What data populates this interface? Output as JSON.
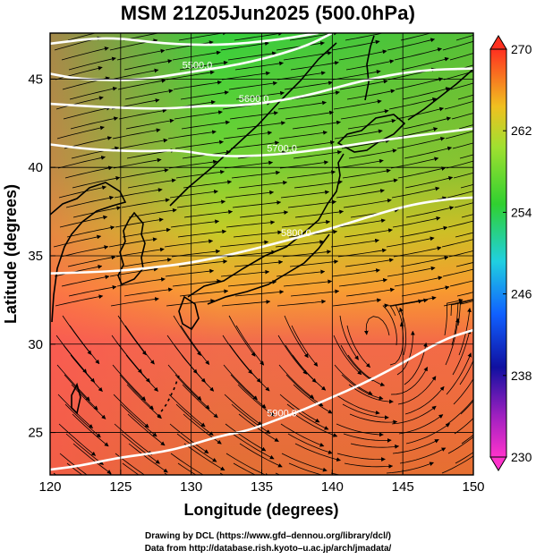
{
  "title": "MSM 21Z05Jun2025 (500.0hPa)",
  "map": {
    "lon_range": [
      120,
      150
    ],
    "lat_range": [
      22.6,
      47.6
    ],
    "x_label": "Longitude (degrees)",
    "y_label": "Latitude  (degrees)",
    "x_ticks": [
      {
        "value": 120,
        "label": "120"
      },
      {
        "value": 125,
        "label": "125"
      },
      {
        "value": 130,
        "label": "130"
      },
      {
        "value": 135,
        "label": "135"
      },
      {
        "value": 140,
        "label": "140"
      },
      {
        "value": 145,
        "label": "145"
      },
      {
        "value": 150,
        "label": "150"
      }
    ],
    "y_ticks": [
      {
        "value": 25,
        "label": "25"
      },
      {
        "value": 30,
        "label": "30"
      },
      {
        "value": 35,
        "label": "35"
      },
      {
        "value": 40,
        "label": "40"
      },
      {
        "value": 45,
        "label": "45"
      }
    ],
    "grid": true
  },
  "colorbar": {
    "min": 230,
    "max": 270,
    "labels": [
      {
        "value": 270,
        "label": "270"
      },
      {
        "value": 262,
        "label": "262"
      },
      {
        "value": 254,
        "label": "254"
      },
      {
        "value": 246,
        "label": "246"
      },
      {
        "value": 238,
        "label": "238"
      },
      {
        "value": 230,
        "label": "230"
      }
    ]
  },
  "height_contours": [
    {
      "name": "5400",
      "label": "",
      "points": [
        [
          120,
          47.0
        ],
        [
          124,
          47.4
        ],
        [
          128,
          47.0
        ],
        [
          132,
          46.9
        ],
        [
          136,
          47.2
        ],
        [
          139,
          47.6
        ]
      ]
    },
    {
      "name": "5500",
      "label": "5500.0",
      "points": [
        [
          120,
          45.3
        ],
        [
          122,
          45.0
        ],
        [
          126,
          44.9
        ],
        [
          130,
          45.4
        ],
        [
          134,
          45.9
        ],
        [
          138,
          46.8
        ],
        [
          140,
          47.6
        ]
      ]
    },
    {
      "name": "5600",
      "label": "5600.0",
      "points": [
        [
          120,
          43.6
        ],
        [
          124,
          43.4
        ],
        [
          128,
          43.3
        ],
        [
          131,
          43.5
        ],
        [
          134,
          43.5
        ],
        [
          138,
          44.0
        ],
        [
          142,
          44.9
        ],
        [
          146,
          45.5
        ],
        [
          150,
          45.6
        ]
      ]
    },
    {
      "name": "5700",
      "label": "5700.0",
      "points": [
        [
          120,
          41.3
        ],
        [
          123,
          41.0
        ],
        [
          127,
          40.9
        ],
        [
          129,
          41.0
        ],
        [
          132,
          40.6
        ],
        [
          136,
          40.7
        ],
        [
          140,
          41.1
        ],
        [
          144,
          41.6
        ],
        [
          148,
          42.0
        ],
        [
          150,
          42.2
        ]
      ]
    },
    {
      "name": "5800",
      "label": "5800.0",
      "points": [
        [
          120,
          34.0
        ],
        [
          124,
          34.1
        ],
        [
          127,
          34.3
        ],
        [
          130,
          34.6
        ],
        [
          133,
          35.1
        ],
        [
          137,
          35.9
        ],
        [
          141,
          36.8
        ],
        [
          145,
          37.8
        ],
        [
          148,
          38.2
        ],
        [
          150,
          38.3
        ]
      ]
    },
    {
      "name": "5900",
      "label": "5900.0",
      "points": [
        [
          120,
          22.9
        ],
        [
          122,
          23.1
        ],
        [
          125,
          23.6
        ],
        [
          128,
          23.9
        ],
        [
          130,
          24.3
        ],
        [
          132,
          24.8
        ],
        [
          134,
          25.1
        ],
        [
          136,
          25.7
        ],
        [
          138,
          26.3
        ],
        [
          140,
          27.0
        ],
        [
          142,
          27.7
        ],
        [
          144,
          28.5
        ],
        [
          146,
          29.4
        ],
        [
          148,
          30.3
        ],
        [
          150,
          30.8
        ]
      ]
    }
  ]
}
